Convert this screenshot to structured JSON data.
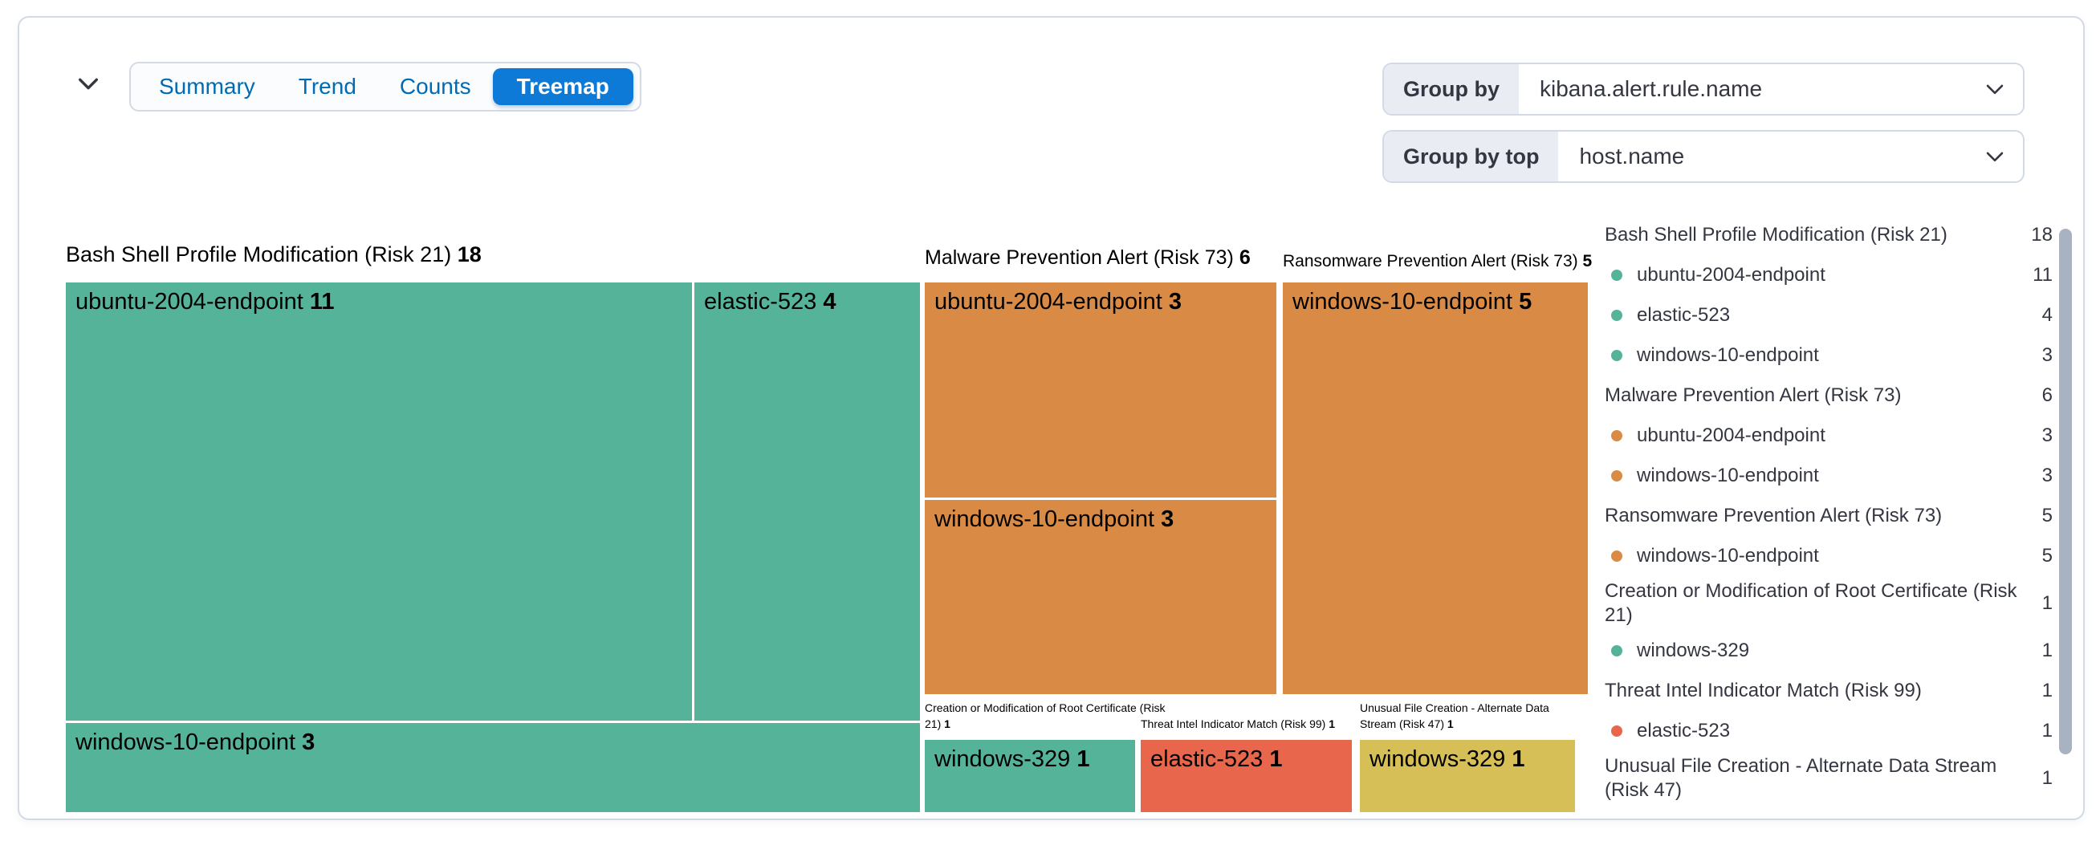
{
  "toolbar": {
    "tabs": [
      {
        "label": "Summary",
        "active": false
      },
      {
        "label": "Trend",
        "active": false
      },
      {
        "label": "Counts",
        "active": false
      },
      {
        "label": "Treemap",
        "active": true
      }
    ],
    "group_by": {
      "label": "Group by",
      "value": "kibana.alert.rule.name"
    },
    "group_by_top": {
      "label": "Group by top",
      "value": "host.name"
    }
  },
  "colors": {
    "green": "#54B399",
    "orange": "#D98B45",
    "red": "#E7664C",
    "yellow": "#D6BF57",
    "active_tab_blue": "#0D7AD7",
    "link_blue": "#006BB4",
    "text": "#343741",
    "border": "#D3DAE6",
    "prepend_bg": "#E9EDF3",
    "scroll_thumb": "#A9B2C1"
  },
  "chart_data": {
    "type": "treemap",
    "group_by": "kibana.alert.rule.name",
    "group_by_top": "host.name",
    "sections": [
      {
        "name": "Bash Shell Profile Modification (Risk 21)",
        "value": 18,
        "color": "#54B399",
        "children": [
          {
            "name": "ubuntu-2004-endpoint",
            "value": 11
          },
          {
            "name": "elastic-523",
            "value": 4
          },
          {
            "name": "windows-10-endpoint",
            "value": 3
          }
        ]
      },
      {
        "name": "Malware Prevention Alert (Risk 73)",
        "value": 6,
        "color": "#D98B45",
        "children": [
          {
            "name": "ubuntu-2004-endpoint",
            "value": 3
          },
          {
            "name": "windows-10-endpoint",
            "value": 3
          }
        ]
      },
      {
        "name": "Ransomware Prevention Alert (Risk 73)",
        "value": 5,
        "color": "#D98B45",
        "children": [
          {
            "name": "windows-10-endpoint",
            "value": 5
          }
        ]
      },
      {
        "name": "Creation or Modification of Root Certificate (Risk 21)",
        "value": 1,
        "color": "#54B399",
        "children": [
          {
            "name": "windows-329",
            "value": 1
          }
        ]
      },
      {
        "name": "Threat Intel Indicator Match (Risk 99)",
        "value": 1,
        "color": "#E7664C",
        "children": [
          {
            "name": "elastic-523",
            "value": 1
          }
        ]
      },
      {
        "name": "Unusual File Creation - Alternate Data Stream (Risk 47)",
        "value": 1,
        "color": "#D6BF57",
        "children": [
          {
            "name": "windows-329",
            "value": 1
          }
        ]
      }
    ]
  },
  "legend": {
    "rows": [
      {
        "type": "group",
        "label": "Bash Shell Profile Modification (Risk 21)",
        "value": 18
      },
      {
        "type": "item",
        "label": "ubuntu-2004-endpoint",
        "value": 11,
        "dot": "#54B399"
      },
      {
        "type": "item",
        "label": "elastic-523",
        "value": 4,
        "dot": "#54B399"
      },
      {
        "type": "item",
        "label": "windows-10-endpoint",
        "value": 3,
        "dot": "#54B399"
      },
      {
        "type": "group",
        "label": "Malware Prevention Alert (Risk 73)",
        "value": 6
      },
      {
        "type": "item",
        "label": "ubuntu-2004-endpoint",
        "value": 3,
        "dot": "#D98B45"
      },
      {
        "type": "item",
        "label": "windows-10-endpoint",
        "value": 3,
        "dot": "#D98B45"
      },
      {
        "type": "group",
        "label": "Ransomware Prevention Alert (Risk 73)",
        "value": 5
      },
      {
        "type": "item",
        "label": "windows-10-endpoint",
        "value": 5,
        "dot": "#D98B45"
      },
      {
        "type": "group",
        "label": "Creation or Modification of Root Certificate (Risk 21)",
        "value": 1
      },
      {
        "type": "item",
        "label": "windows-329",
        "value": 1,
        "dot": "#54B399"
      },
      {
        "type": "group",
        "label": "Threat Intel Indicator Match (Risk 99)",
        "value": 1
      },
      {
        "type": "item",
        "label": "elastic-523",
        "value": 1,
        "dot": "#E7664C"
      },
      {
        "type": "group",
        "label": "Unusual File Creation - Alternate Data Stream (Risk 47)",
        "value": 1
      }
    ]
  }
}
